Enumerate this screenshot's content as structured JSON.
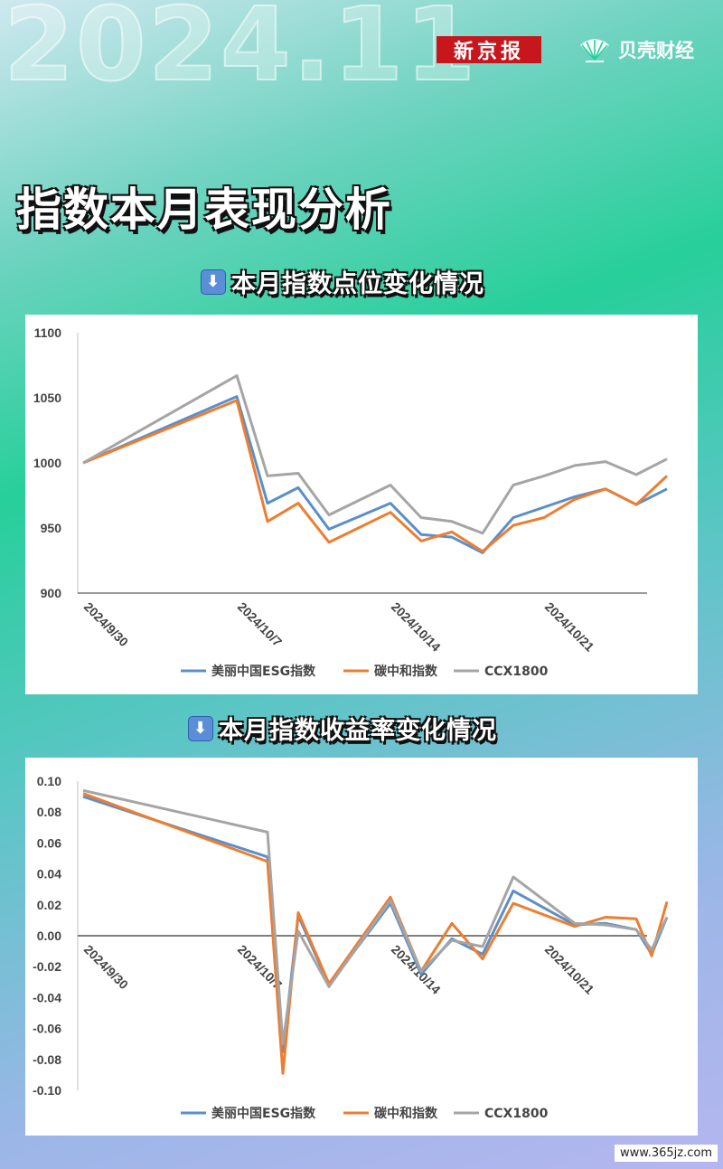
{
  "header": {
    "year": "2024.11",
    "brand_left": "新京报",
    "brand_right": "贝壳财经",
    "main_title": "指数本月表现分析",
    "watermark": "www.365jz.com"
  },
  "colors": {
    "esg": "#5b8fc9",
    "carbon": "#ed7d31",
    "ccx": "#a5a5a5",
    "brand_red": "#c8161d"
  },
  "chart_data": [
    {
      "type": "line",
      "section_title": "本月指数点位变化情况",
      "ylim": [
        900,
        1100
      ],
      "yticks": [
        "1100",
        "1050",
        "1000",
        "950",
        "900"
      ],
      "xtick_labels": [
        "2024/9/30",
        "2024/10/7",
        "2024/10/14",
        "2024/10/21"
      ],
      "xtick_index": [
        0,
        5,
        10,
        15
      ],
      "n_points": 19,
      "zero_line": false,
      "series": [
        {
          "name": "美丽中国ESG指数",
          "color": "#5b8fc9",
          "values": [
            1000,
            1051,
            969,
            981,
            949,
            969,
            945,
            943,
            931,
            958,
            966,
            974,
            980,
            968,
            980
          ],
          "x": [
            0,
            5,
            6,
            7,
            8,
            10,
            11,
            12,
            13,
            14,
            15,
            16,
            17,
            18,
            19
          ]
        },
        {
          "name": "碳中和指数",
          "color": "#ed7d31",
          "values": [
            1000,
            1048,
            955,
            969,
            939,
            962,
            940,
            947,
            932,
            952,
            958,
            972,
            980,
            968,
            990
          ],
          "x": [
            0,
            5,
            6,
            7,
            8,
            10,
            11,
            12,
            13,
            14,
            15,
            16,
            17,
            18,
            19
          ]
        },
        {
          "name": "CCX1800",
          "color": "#a5a5a5",
          "values": [
            1000,
            1067,
            990,
            992,
            960,
            983,
            958,
            955,
            946,
            983,
            990,
            998,
            1001,
            991,
            1003
          ],
          "x": [
            0,
            5,
            6,
            7,
            8,
            10,
            11,
            12,
            13,
            14,
            15,
            16,
            17,
            18,
            19
          ]
        }
      ]
    },
    {
      "type": "line",
      "section_title": "本月指数收益率变化情况",
      "ylim": [
        -0.1,
        0.1
      ],
      "yticks": [
        "0.10",
        "0.08",
        "0.06",
        "0.04",
        "0.02",
        "0.00",
        "-0.02",
        "-0.04",
        "-0.06",
        "-0.08",
        "-0.10"
      ],
      "xtick_labels": [
        "2024/9/30",
        "2024/10/7",
        "2024/10/14",
        "2024/10/21"
      ],
      "xtick_index": [
        0,
        5,
        10,
        15
      ],
      "n_points": 19,
      "zero_line": true,
      "series": [
        {
          "name": "美丽中国ESG指数",
          "color": "#5b8fc9",
          "values": [
            0.09,
            0.051,
            -0.075,
            0.013,
            -0.032,
            0.021,
            -0.025,
            -0.002,
            -0.012,
            0.029,
            0.007,
            0.008,
            0.004,
            -0.012,
            0.012
          ],
          "x": [
            0,
            6,
            6.5,
            7,
            8,
            10,
            11,
            12,
            13,
            14,
            16,
            17,
            18,
            18.5,
            19
          ]
        },
        {
          "name": "碳中和指数",
          "color": "#ed7d31",
          "values": [
            0.092,
            0.048,
            -0.089,
            0.015,
            -0.031,
            0.025,
            -0.023,
            0.008,
            -0.015,
            0.021,
            0.006,
            0.012,
            0.011,
            -0.013,
            0.022
          ],
          "x": [
            0,
            6,
            6.5,
            7,
            8,
            10,
            11,
            12,
            13,
            14,
            16,
            17,
            18,
            18.5,
            19
          ]
        },
        {
          "name": "CCX1800",
          "color": "#a5a5a5",
          "values": [
            0.094,
            0.067,
            -0.07,
            0.003,
            -0.033,
            0.023,
            -0.023,
            -0.003,
            -0.007,
            0.038,
            0.008,
            0.007,
            0.004,
            -0.009,
            0.012
          ],
          "x": [
            0,
            6,
            6.5,
            7,
            8,
            10,
            11,
            12,
            13,
            14,
            16,
            17,
            18,
            18.5,
            19
          ]
        }
      ]
    }
  ]
}
